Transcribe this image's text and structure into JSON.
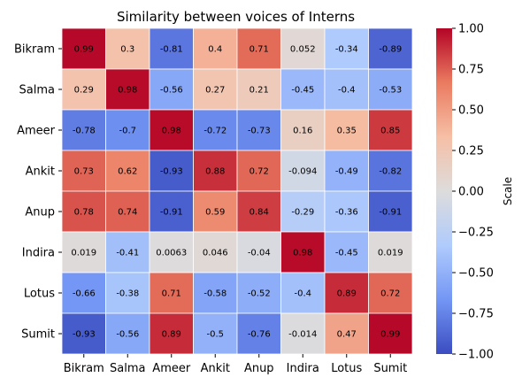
{
  "chart_data": {
    "type": "heatmap",
    "title": "Similarity between voices of Interns",
    "rows": [
      "Bikram",
      "Salma",
      "Ameer",
      "Ankit",
      "Anup",
      "Indira",
      "Lotus",
      "Sumit"
    ],
    "columns": [
      "Bikram",
      "Salma",
      "Ameer",
      "Ankit",
      "Anup",
      "Indira",
      "Lotus",
      "Sumit"
    ],
    "values": [
      [
        0.99,
        0.3,
        -0.81,
        0.4,
        0.71,
        0.052,
        -0.34,
        -0.89
      ],
      [
        0.29,
        0.98,
        -0.56,
        0.27,
        0.21,
        -0.45,
        -0.4,
        -0.53
      ],
      [
        -0.78,
        -0.7,
        0.98,
        -0.72,
        -0.73,
        0.16,
        0.35,
        0.85
      ],
      [
        0.73,
        0.62,
        -0.93,
        0.88,
        0.72,
        -0.094,
        -0.49,
        -0.82
      ],
      [
        0.78,
        0.74,
        -0.91,
        0.59,
        0.84,
        -0.29,
        -0.36,
        -0.91
      ],
      [
        0.019,
        -0.41,
        0.0063,
        0.046,
        -0.04,
        0.98,
        -0.45,
        0.019
      ],
      [
        -0.66,
        -0.38,
        0.71,
        -0.58,
        -0.52,
        -0.4,
        0.89,
        0.72
      ],
      [
        -0.93,
        -0.56,
        0.89,
        -0.5,
        -0.76,
        -0.014,
        0.47,
        0.99
      ]
    ],
    "value_labels": [
      [
        "0.99",
        "0.3",
        "-0.81",
        "0.4",
        "0.71",
        "0.052",
        "-0.34",
        "-0.89"
      ],
      [
        "0.29",
        "0.98",
        "-0.56",
        "0.27",
        "0.21",
        "-0.45",
        "-0.4",
        "-0.53"
      ],
      [
        "-0.78",
        "-0.7",
        "0.98",
        "-0.72",
        "-0.73",
        "0.16",
        "0.35",
        "0.85"
      ],
      [
        "0.73",
        "0.62",
        "-0.93",
        "0.88",
        "0.72",
        "-0.094",
        "-0.49",
        "-0.82"
      ],
      [
        "0.78",
        "0.74",
        "-0.91",
        "0.59",
        "0.84",
        "-0.29",
        "-0.36",
        "-0.91"
      ],
      [
        "0.019",
        "-0.41",
        "0.0063",
        "0.046",
        "-0.04",
        "0.98",
        "-0.45",
        "0.019"
      ],
      [
        "-0.66",
        "-0.38",
        "0.71",
        "-0.58",
        "-0.52",
        "-0.4",
        "0.89",
        "0.72"
      ],
      [
        "-0.93",
        "-0.56",
        "0.89",
        "-0.5",
        "-0.76",
        "-0.014",
        "0.47",
        "0.99"
      ]
    ],
    "colorbar": {
      "label": "Scale",
      "range": [
        -1.0,
        1.0
      ],
      "ticks": [
        1.0,
        0.75,
        0.5,
        0.25,
        0.0,
        -0.25,
        -0.5,
        -0.75,
        -1.0
      ],
      "tick_labels": [
        "1.00",
        "0.75",
        "0.50",
        "0.25",
        "0.00",
        "−0.25",
        "−0.50",
        "−0.75",
        "−1.00"
      ]
    },
    "colormap": "coolwarm",
    "colormap_stops": [
      "#3b4cc0",
      "#7396f5",
      "#b0cbfc",
      "#dddcdc",
      "#f6bfa6",
      "#ea7b60",
      "#b40426"
    ],
    "cell_border_color": "#ffffff",
    "grid": false
  }
}
